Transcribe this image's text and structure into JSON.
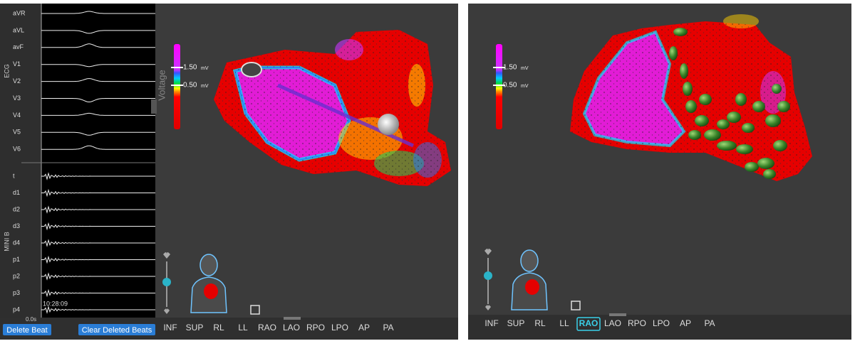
{
  "left_panel": {
    "ecg_label": "ECG",
    "mini_label": "MINI B",
    "ecg_channels": [
      "aVR",
      "aVL",
      "avF",
      "V1",
      "V2",
      "V3",
      "V4",
      "V5",
      "V6"
    ],
    "mini_channels": [
      "t",
      "d1",
      "d2",
      "d3",
      "d4",
      "p1",
      "p2",
      "p3",
      "p4"
    ],
    "time_start": "0.0s",
    "timestamp": "10:28:09",
    "buttons": [
      "Delete Beat",
      "Clear Deleted Beats"
    ],
    "legend": {
      "title": "Voltage",
      "high": "1.50",
      "low": "0.50",
      "unit": "mV"
    },
    "views": [
      "INF",
      "SUP",
      "RL",
      "LL",
      "RAO",
      "LAO",
      "RPO",
      "LPO",
      "AP",
      "PA"
    ]
  },
  "right_panel": {
    "legend": {
      "high": "1.50",
      "low": "0.50",
      "unit": "mV"
    },
    "views": [
      "INF",
      "SUP",
      "RL",
      "LL",
      "RAO",
      "LAO",
      "RPO",
      "LPO",
      "AP",
      "PA"
    ],
    "selected_view": "RAO"
  }
}
